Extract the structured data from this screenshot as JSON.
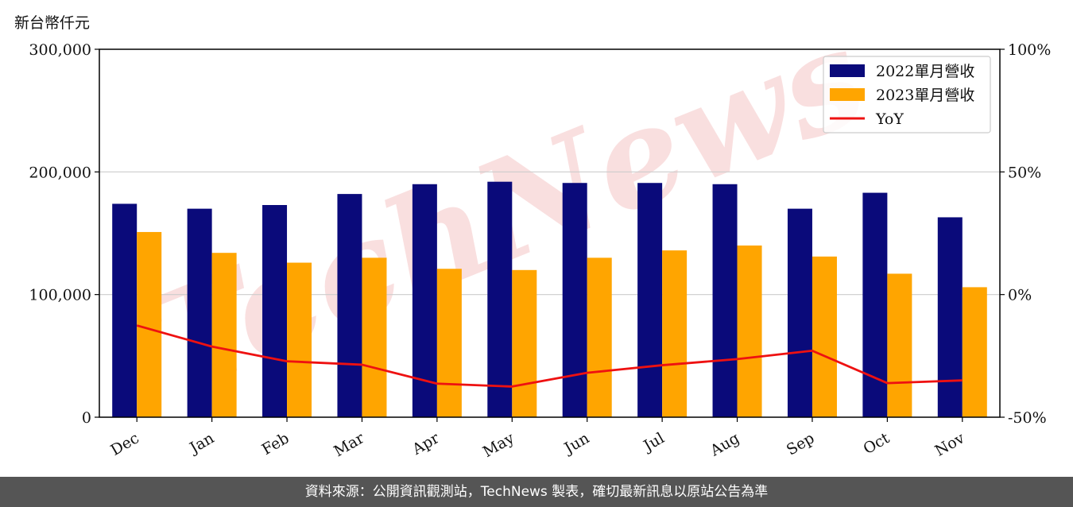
{
  "unit_label": "新台幣仟元",
  "footer": "資料來源：公開資訊觀測站，TechNews 製表，確切最新訊息以原站公告為準",
  "watermark": "TechNews",
  "colors": {
    "bar2022": "#0a0a7a",
    "bar2023": "#ffa500",
    "yoy": "#ee1111",
    "grid": "#cccccc",
    "watermark": "#f4c4c4"
  },
  "chart_data": {
    "type": "bar",
    "categories": [
      "Dec",
      "Jan",
      "Feb",
      "Mar",
      "Apr",
      "May",
      "Jun",
      "Jul",
      "Aug",
      "Sep",
      "Oct",
      "Nov"
    ],
    "series": [
      {
        "name": "2022單月營收",
        "type": "bar",
        "axis": "left",
        "values": [
          174000,
          170000,
          173000,
          182000,
          190000,
          192000,
          191000,
          191000,
          190000,
          170000,
          183000,
          163000
        ]
      },
      {
        "name": "2023單月營收",
        "type": "bar",
        "axis": "left",
        "values": [
          151000,
          134000,
          126000,
          130000,
          121000,
          120000,
          130000,
          136000,
          140000,
          131000,
          117000,
          106000
        ]
      },
      {
        "name": "YoY",
        "type": "line",
        "axis": "right",
        "values": [
          -12.6,
          -21.2,
          -27.2,
          -28.6,
          -36.3,
          -37.5,
          -31.9,
          -28.8,
          -26.3,
          -22.9,
          -36.1,
          -35.0
        ]
      }
    ],
    "y_left": {
      "range": [
        0,
        300000
      ],
      "ticks": [
        "0",
        "100,000",
        "200,000",
        "300,000"
      ],
      "tick_values": [
        0,
        100000,
        200000,
        300000
      ]
    },
    "y_right": {
      "range": [
        -50,
        100
      ],
      "ticks": [
        "-50%",
        "0%",
        "50%",
        "100%"
      ],
      "tick_values": [
        -50,
        0,
        50,
        100
      ]
    },
    "grid": "horizontal",
    "legend_position": "top-right",
    "xlabel": "",
    "ylabel": ""
  }
}
